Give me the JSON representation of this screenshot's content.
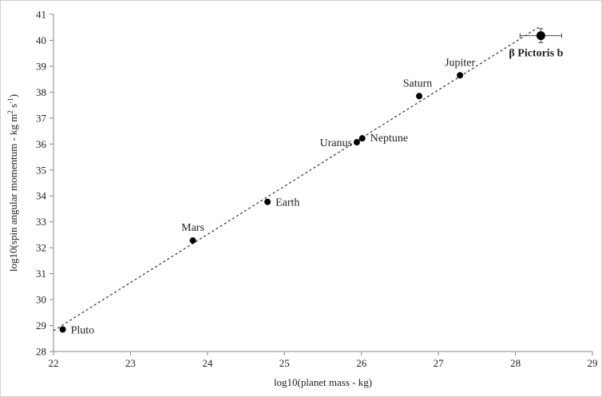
{
  "chart_data": {
    "type": "scatter",
    "xlabel": "log10(planet mass - kg)",
    "ylabel_parts": [
      "log10(spin angular momentum - kg m",
      "2",
      " s",
      "-1",
      ")"
    ],
    "xlim": [
      22,
      29
    ],
    "ylim": [
      28,
      41
    ],
    "x_ticks": [
      "22",
      "23",
      "24",
      "25",
      "26",
      "27",
      "28",
      "29"
    ],
    "y_ticks": [
      "28",
      "29",
      "30",
      "31",
      "32",
      "33",
      "34",
      "35",
      "36",
      "37",
      "38",
      "39",
      "40",
      "41"
    ],
    "grid": false,
    "points": [
      {
        "label": "Pluto",
        "x": 22.12,
        "y": 28.85
      },
      {
        "label": "Mars",
        "x": 23.81,
        "y": 32.28
      },
      {
        "label": "Earth",
        "x": 24.78,
        "y": 33.77
      },
      {
        "label": "Uranus",
        "x": 25.94,
        "y": 36.07
      },
      {
        "label": "Neptune",
        "x": 26.01,
        "y": 36.22
      },
      {
        "label": "Saturn",
        "x": 26.75,
        "y": 37.85
      },
      {
        "label": "Jupiter",
        "x": 27.28,
        "y": 38.65
      },
      {
        "label": "β Pictoris b",
        "x": 28.33,
        "y": 40.18,
        "x_err": 0.27,
        "y_err": 0.27,
        "bold": true
      }
    ],
    "trend_line": {
      "x": [
        22.0,
        28.3
      ],
      "y": [
        28.8,
        40.5
      ],
      "style": "dashed"
    }
  }
}
